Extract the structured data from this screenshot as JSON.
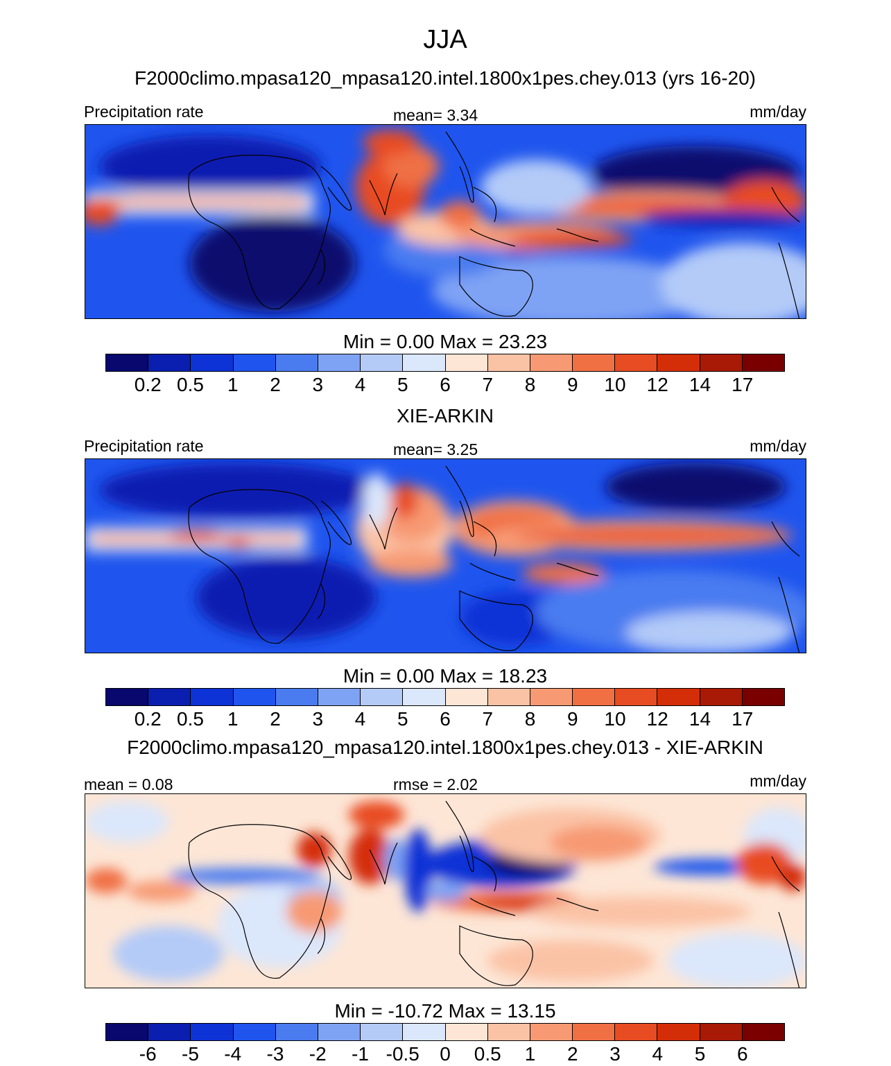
{
  "title": "JJA",
  "panels": [
    {
      "heading": "F2000climo.mpasa120_mpasa120.intel.1800x1pes.chey.013 (yrs 16-20)",
      "left_label": "Precipitation rate",
      "center_label": "mean=   3.34",
      "right_label": "mm/day",
      "minmax": "Min =   0.00 Max =  23.23",
      "kind": "abs"
    },
    {
      "heading": "XIE-ARKIN",
      "left_label": "Precipitation rate",
      "center_label": "mean=   3.25",
      "right_label": "mm/day",
      "minmax": "Min =   0.00 Max =  18.23",
      "kind": "abs"
    },
    {
      "heading": "F2000climo.mpasa120_mpasa120.intel.1800x1pes.chey.013 - XIE-ARKIN",
      "left_label": "mean =   0.08",
      "center_label": "rmse =   2.02",
      "right_label": "mm/day",
      "minmax": "Min = -10.72 Max =  13.15",
      "kind": "diff"
    }
  ],
  "colorbar": {
    "colors": [
      "#08086e",
      "#0a1fb0",
      "#0d33d6",
      "#1f55ee",
      "#4a7cf0",
      "#7fa3f4",
      "#b4cbf8",
      "#dbe7fb",
      "#fde6d6",
      "#fbc3a6",
      "#f79a73",
      "#f07044",
      "#e84c22",
      "#d42e08",
      "#a81a05",
      "#7a0000"
    ],
    "abs_ticks": [
      "0.2",
      "0.5",
      "1",
      "2",
      "3",
      "4",
      "5",
      "6",
      "7",
      "8",
      "9",
      "10",
      "12",
      "14",
      "17"
    ],
    "diff_ticks": [
      "-6",
      "-5",
      "-4",
      "-3",
      "-2",
      "-1",
      "-0.5",
      "0",
      "0.5",
      "1",
      "2",
      "3",
      "4",
      "5",
      "6"
    ]
  }
}
